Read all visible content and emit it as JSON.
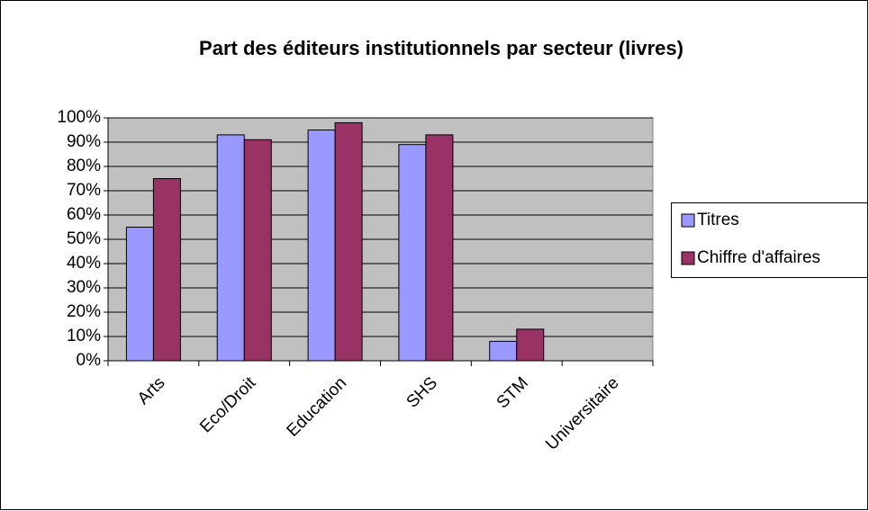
{
  "chart_data": {
    "type": "bar",
    "title": "Part des éditeurs institutionnels par secteur (livres)",
    "categories": [
      "Arts",
      "Eco/Droit",
      "Education",
      "SHS",
      "STM",
      "Universitaire"
    ],
    "series": [
      {
        "name": "Titres",
        "color": "#9999ff",
        "values": [
          55,
          93,
          95,
          89,
          8,
          null
        ]
      },
      {
        "name": "Chiffre d'affaires",
        "color": "#993366",
        "values": [
          75,
          91,
          98,
          93,
          13,
          null
        ]
      }
    ],
    "ylim": [
      0,
      100
    ],
    "yticks": [
      {
        "value": 0,
        "label": "0%"
      },
      {
        "value": 10,
        "label": "10%"
      },
      {
        "value": 20,
        "label": "20%"
      },
      {
        "value": 30,
        "label": "30%"
      },
      {
        "value": 40,
        "label": "40%"
      },
      {
        "value": 50,
        "label": "50%"
      },
      {
        "value": 60,
        "label": "60%"
      },
      {
        "value": 70,
        "label": "70%"
      },
      {
        "value": 80,
        "label": "80%"
      },
      {
        "value": 90,
        "label": "90%"
      },
      {
        "value": 100,
        "label": "100%"
      }
    ],
    "grid": true,
    "legend": "right"
  }
}
